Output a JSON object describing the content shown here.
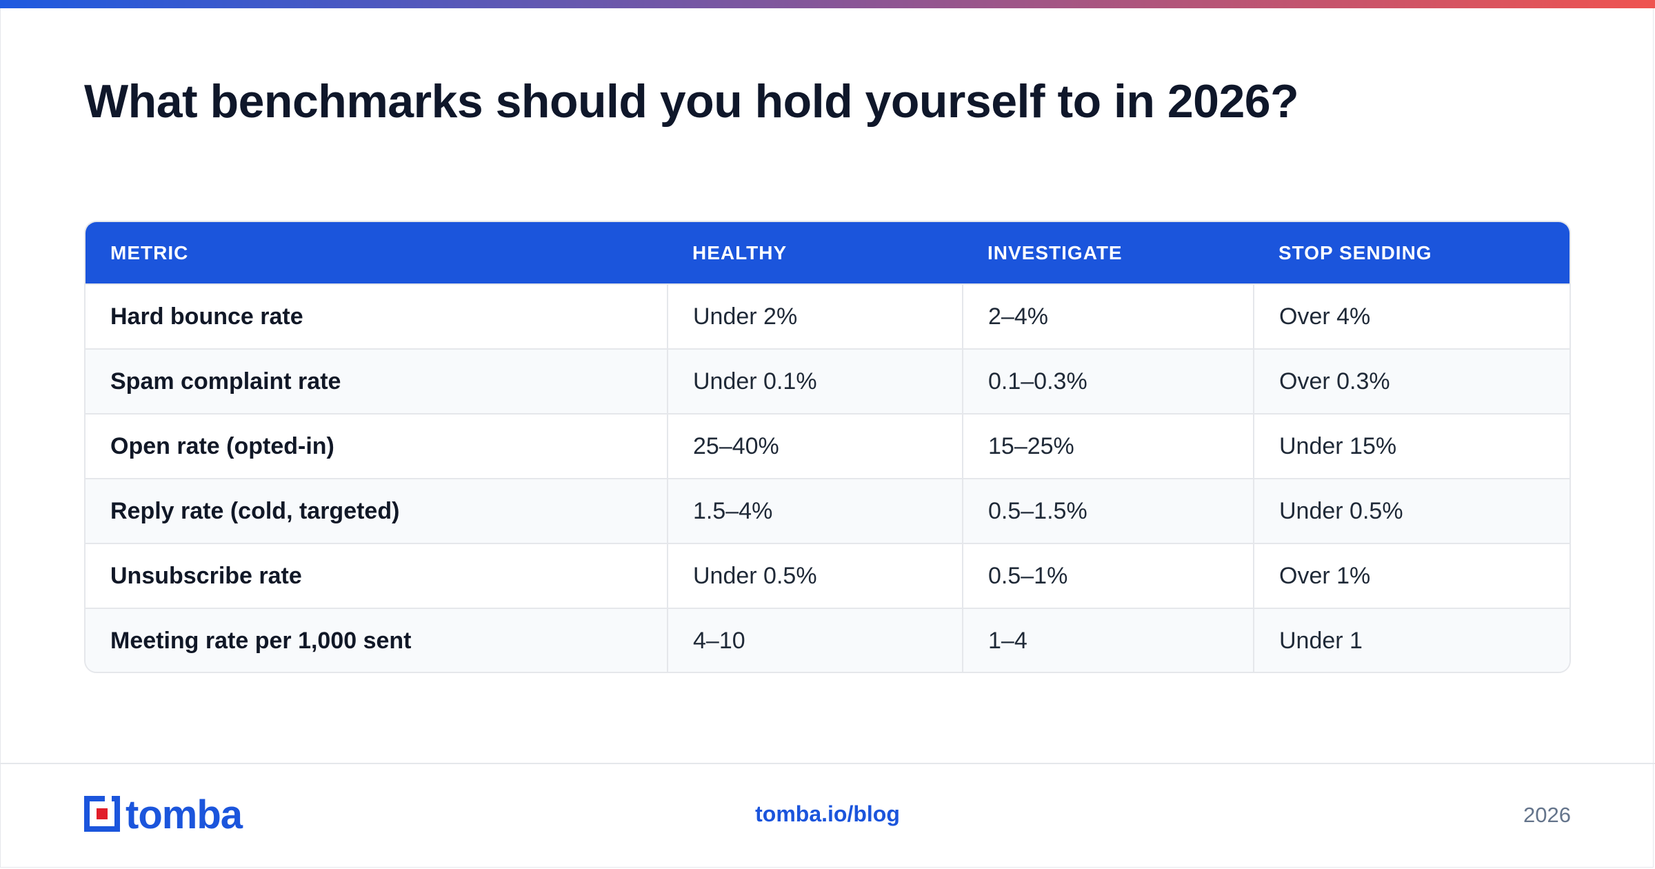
{
  "theme": {
    "accent": "#1b55dc",
    "gradient_start": "#1e5ae0",
    "gradient_end": "#ef5350",
    "logo_red": "#e11d2a"
  },
  "title": "What benchmarks should you hold yourself to in 2026?",
  "table": {
    "headers": [
      "METRIC",
      "HEALTHY",
      "INVESTIGATE",
      "STOP SENDING"
    ],
    "rows": [
      [
        "Hard bounce rate",
        "Under 2%",
        "2–4%",
        "Over 4%"
      ],
      [
        "Spam complaint rate",
        "Under 0.1%",
        "0.1–0.3%",
        "Over 0.3%"
      ],
      [
        "Open rate (opted-in)",
        "25–40%",
        "15–25%",
        "Under 15%"
      ],
      [
        "Reply rate (cold, targeted)",
        "1.5–4%",
        "0.5–1.5%",
        "Under 0.5%"
      ],
      [
        "Unsubscribe rate",
        "Under 0.5%",
        "0.5–1%",
        "Over 1%"
      ],
      [
        "Meeting rate per 1,000 sent",
        "4–10",
        "1–4",
        "Under 1"
      ]
    ]
  },
  "footer": {
    "logo_text": "tomba",
    "logo_icon": "tomba-logo-icon",
    "link": "tomba.io/blog",
    "year": "2026"
  }
}
